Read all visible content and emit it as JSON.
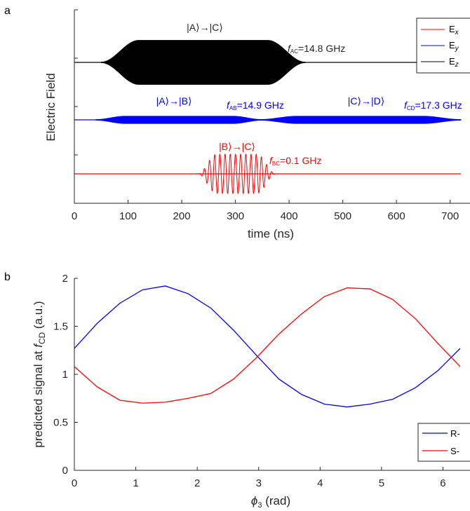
{
  "panel_labels": [
    "a",
    "b"
  ],
  "chart_data": [
    {
      "type": "line",
      "ylabel": "Electric Field",
      "xlabel": "time (ns)",
      "xlim": [
        0,
        720
      ],
      "xticks": [
        0,
        100,
        200,
        300,
        400,
        500,
        600,
        700
      ],
      "legend": {
        "placement": "top-right",
        "entries": [
          {
            "label": "E",
            "sub": "x",
            "color": "#ff0000"
          },
          {
            "label": "E",
            "sub": "y",
            "color": "#0000ff"
          },
          {
            "label": "E",
            "sub": "z",
            "color": "#000000"
          }
        ]
      },
      "pulses": [
        {
          "series": "Ez",
          "color": "#000000",
          "start": 50,
          "end": 430,
          "rise": 70,
          "amplitude": 1.0,
          "baseline": 1
        },
        {
          "series": "Ey",
          "color": "#0000ff",
          "start": 40,
          "end": 350,
          "rise": 55,
          "amplitude": 0.5,
          "baseline": 2
        },
        {
          "series": "Ey",
          "color": "#0000ff",
          "start": 345,
          "end": 720,
          "rise": 70,
          "amplitude": 0.5,
          "baseline": 2
        },
        {
          "series": "Ex",
          "color": "#ff0000",
          "start": 230,
          "end": 375,
          "rise": 35,
          "amplitude": 1.0,
          "cycles": 15,
          "baseline": 3
        }
      ],
      "annotations": [
        {
          "id": "ac",
          "transition": "|A⟩→|C⟩",
          "freq_sub": "AC",
          "freq_text": "=14.8 GHz",
          "color_key": "black"
        },
        {
          "id": "ab",
          "transition": "|A⟩→|B⟩",
          "freq_sub": "AB",
          "freq_text": "=14.9 GHz",
          "color_key": "blue"
        },
        {
          "id": "cd",
          "transition": "|C⟩→|D⟩",
          "freq_sub": "CD",
          "freq_text": "=17.3 GHz",
          "color_key": "blue"
        },
        {
          "id": "bc",
          "transition": "|B⟩→|C⟩",
          "freq_sub": "BC",
          "freq_text": "=0.1 GHz",
          "color_key": "red"
        }
      ]
    },
    {
      "type": "line",
      "ylabel_prefix": "predicted signal at ",
      "ylabel_f": "f",
      "ylabel_sub": "CD",
      "ylabel_suffix": " (a.u.)",
      "xlabel_symbol": "ϕ",
      "xlabel_sub": "3",
      "xlabel_suffix": " (rad)",
      "xlim": [
        0,
        6.28
      ],
      "ylim": [
        0,
        2
      ],
      "xticks": [
        0,
        1,
        2,
        3,
        4,
        5,
        6
      ],
      "yticks": [
        0,
        0.5,
        1,
        1.5,
        2
      ],
      "yticklabels": [
        "0",
        "0.5",
        "1",
        "1.5",
        "2"
      ],
      "legend": {
        "placement": "bottom-right"
      },
      "x": [
        0,
        0.37,
        0.74,
        1.11,
        1.48,
        1.85,
        2.22,
        2.59,
        2.96,
        3.33,
        3.7,
        4.07,
        4.44,
        4.81,
        5.18,
        5.55,
        5.92,
        6.28
      ],
      "series": [
        {
          "name": "R-",
          "color": "#0000ff",
          "values": [
            1.27,
            1.53,
            1.74,
            1.88,
            1.92,
            1.84,
            1.69,
            1.46,
            1.2,
            0.95,
            0.79,
            0.69,
            0.66,
            0.69,
            0.74,
            0.86,
            1.04,
            1.27
          ]
        },
        {
          "name": "S-",
          "color": "#ff0000",
          "values": [
            1.08,
            0.87,
            0.73,
            0.7,
            0.71,
            0.75,
            0.8,
            0.95,
            1.17,
            1.42,
            1.63,
            1.81,
            1.9,
            1.89,
            1.78,
            1.58,
            1.32,
            1.08
          ]
        }
      ]
    }
  ]
}
